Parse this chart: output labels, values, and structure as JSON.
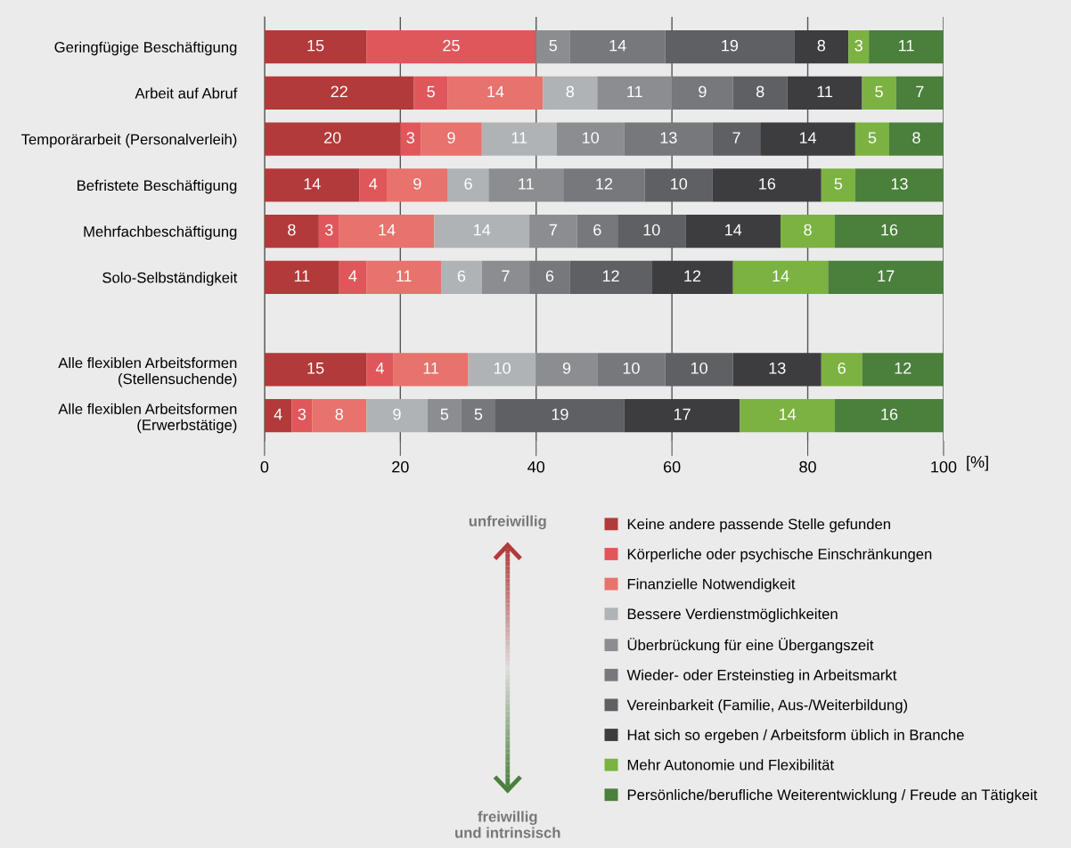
{
  "chart_data": {
    "type": "bar",
    "orientation": "horizontal",
    "stacked": true,
    "categories": [
      "Geringfügige Beschäftigung",
      "Arbeit auf Abruf",
      "Temporärarbeit (Personalverleih)",
      "Befristete Beschäftigung",
      "Mehrfachbeschäftigung",
      "Solo-Selbständigkeit",
      null,
      "Alle flexiblen Arbeitsformen\n(Stellensuchende)",
      "Alle flexiblen Arbeitsformen\n(Erwerbstätige)"
    ],
    "xlabel": "[%]",
    "xlim": [
      0,
      100
    ],
    "xticks": [
      0,
      20,
      40,
      60,
      80,
      100
    ],
    "grid": "x",
    "legend": "bottom",
    "data_labels": true,
    "series": [
      {
        "name": "Keine andere passende Stelle gefunden",
        "color": "#b33a3a",
        "values": [
          15,
          22,
          20,
          14,
          8,
          11,
          null,
          15,
          4
        ]
      },
      {
        "name": "Körperliche oder psychische Einschränkungen",
        "color": "#e0575b",
        "values": [
          25,
          5,
          3,
          4,
          3,
          4,
          null,
          4,
          3
        ]
      },
      {
        "name": "Finanzielle Notwendigkeit",
        "color": "#e8726c",
        "values": [
          null,
          14,
          9,
          9,
          14,
          11,
          null,
          11,
          8
        ]
      },
      {
        "name": "Bessere Verdienstmöglichkeiten",
        "color": "#b0b3b6",
        "values": [
          null,
          8,
          11,
          6,
          14,
          6,
          null,
          10,
          9
        ]
      },
      {
        "name": "Überbrückung für eine Übergangszeit",
        "color": "#8c8d90",
        "values": [
          5,
          11,
          10,
          11,
          7,
          7,
          null,
          9,
          5
        ]
      },
      {
        "name": "Wieder- oder Ersteinstieg in Arbeitsmarkt",
        "color": "#77787c",
        "values": [
          14,
          9,
          13,
          12,
          6,
          6,
          null,
          10,
          5
        ]
      },
      {
        "name": "Vereinbarkeit (Familie, Aus-/Weiterbildung)",
        "color": "#5f6063",
        "values": [
          19,
          8,
          7,
          10,
          10,
          12,
          null,
          10,
          19
        ]
      },
      {
        "name": "Hat sich so ergeben / Arbeitsform üblich in Branche",
        "color": "#3d3d40",
        "values": [
          8,
          11,
          14,
          16,
          14,
          12,
          null,
          13,
          17
        ]
      },
      {
        "name": "Mehr Autonomie und Flexibilität",
        "color": "#7bb241",
        "values": [
          3,
          5,
          5,
          5,
          8,
          14,
          null,
          6,
          14
        ]
      },
      {
        "name": "Persönliche/berufliche Weiterentwicklung / Freude an Tätigkeit",
        "color": "#4b7f3c",
        "values": [
          11,
          7,
          8,
          13,
          16,
          17,
          null,
          12,
          16
        ]
      }
    ],
    "annotations": [
      "unfreiwillig",
      "freiwillig\nund intrinsisch"
    ]
  }
}
